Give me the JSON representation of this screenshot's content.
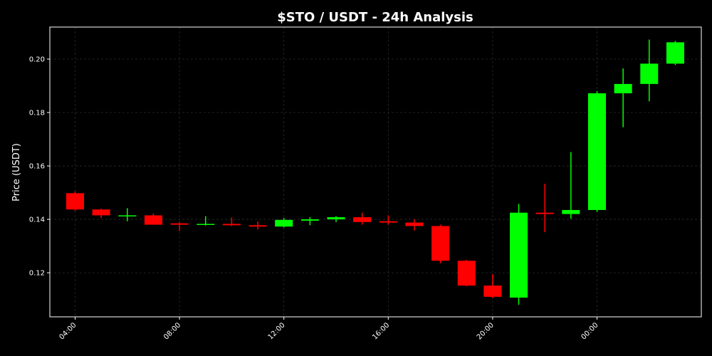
{
  "chart_data": {
    "type": "candlestick",
    "title": "$STO / USDT - 24h Analysis",
    "xlabel": "",
    "ylabel": "Price (USDT)",
    "ylim": [
      0.1035,
      0.212
    ],
    "grid": true,
    "colors": {
      "background": "#000000",
      "up": "#00ff00",
      "down": "#ff0000",
      "axes": "#ffffff",
      "grid": "#2a2a2a",
      "text": "#ffffff"
    },
    "y_ticks": [
      0.12,
      0.14,
      0.16,
      0.18,
      0.2
    ],
    "y_tick_labels": [
      "0.12",
      "0.14",
      "0.16",
      "0.18",
      "0.20"
    ],
    "x_ticks": [
      0,
      4,
      8,
      12,
      16,
      20
    ],
    "x_tick_labels": [
      "04:00",
      "08:00",
      "12:00",
      "16:00",
      "20:00",
      "00:00"
    ],
    "candles": [
      {
        "time": "04:00",
        "open": 0.1498,
        "high": 0.1505,
        "low": 0.1432,
        "close": 0.1437
      },
      {
        "time": "05:00",
        "open": 0.1437,
        "high": 0.144,
        "low": 0.1405,
        "close": 0.1415
      },
      {
        "time": "06:00",
        "open": 0.1412,
        "high": 0.1442,
        "low": 0.1393,
        "close": 0.1415
      },
      {
        "time": "07:00",
        "open": 0.1415,
        "high": 0.1422,
        "low": 0.138,
        "close": 0.138
      },
      {
        "time": "08:00",
        "open": 0.1385,
        "high": 0.139,
        "low": 0.1356,
        "close": 0.138
      },
      {
        "time": "09:00",
        "open": 0.138,
        "high": 0.1412,
        "low": 0.1377,
        "close": 0.1383
      },
      {
        "time": "10:00",
        "open": 0.1383,
        "high": 0.1407,
        "low": 0.1375,
        "close": 0.1378
      },
      {
        "time": "11:00",
        "open": 0.1378,
        "high": 0.1392,
        "low": 0.1362,
        "close": 0.1373
      },
      {
        "time": "12:00",
        "open": 0.1373,
        "high": 0.1405,
        "low": 0.137,
        "close": 0.1398
      },
      {
        "time": "13:00",
        "open": 0.1395,
        "high": 0.1408,
        "low": 0.1378,
        "close": 0.14
      },
      {
        "time": "14:00",
        "open": 0.14,
        "high": 0.1412,
        "low": 0.139,
        "close": 0.1408
      },
      {
        "time": "15:00",
        "open": 0.1408,
        "high": 0.1425,
        "low": 0.138,
        "close": 0.139
      },
      {
        "time": "16:00",
        "open": 0.1393,
        "high": 0.1415,
        "low": 0.138,
        "close": 0.1388
      },
      {
        "time": "17:00",
        "open": 0.1388,
        "high": 0.14,
        "low": 0.1358,
        "close": 0.1375
      },
      {
        "time": "18:00",
        "open": 0.1375,
        "high": 0.138,
        "low": 0.1235,
        "close": 0.1245
      },
      {
        "time": "19:00",
        "open": 0.1245,
        "high": 0.1248,
        "low": 0.115,
        "close": 0.1152
      },
      {
        "time": "20:00",
        "open": 0.1152,
        "high": 0.1195,
        "low": 0.1105,
        "close": 0.111
      },
      {
        "time": "21:00",
        "open": 0.1107,
        "high": 0.1458,
        "low": 0.108,
        "close": 0.1425
      },
      {
        "time": "22:00",
        "open": 0.1425,
        "high": 0.1533,
        "low": 0.1352,
        "close": 0.142
      },
      {
        "time": "23:00",
        "open": 0.142,
        "high": 0.1652,
        "low": 0.1402,
        "close": 0.1435
      },
      {
        "time": "00:00",
        "open": 0.1435,
        "high": 0.188,
        "low": 0.1428,
        "close": 0.1872
      },
      {
        "time": "01:00",
        "open": 0.1872,
        "high": 0.1965,
        "low": 0.1745,
        "close": 0.1907
      },
      {
        "time": "02:00",
        "open": 0.1907,
        "high": 0.2073,
        "low": 0.1842,
        "close": 0.1983
      },
      {
        "time": "03:00",
        "open": 0.1983,
        "high": 0.2068,
        "low": 0.1978,
        "close": 0.2063
      }
    ]
  }
}
